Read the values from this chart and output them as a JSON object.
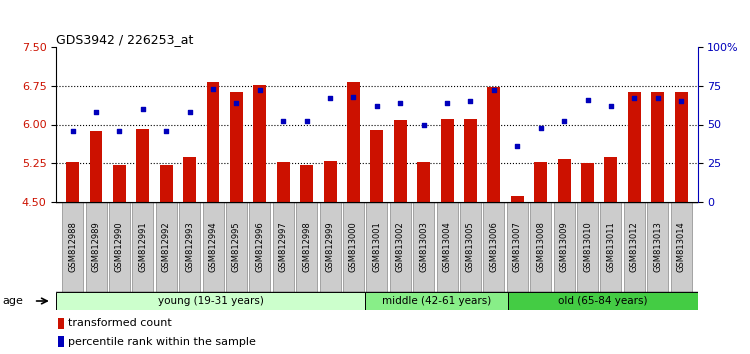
{
  "title": "GDS3942 / 226253_at",
  "samples": [
    "GSM812988",
    "GSM812989",
    "GSM812990",
    "GSM812991",
    "GSM812992",
    "GSM812993",
    "GSM812994",
    "GSM812995",
    "GSM812996",
    "GSM812997",
    "GSM812998",
    "GSM812999",
    "GSM813000",
    "GSM813001",
    "GSM813002",
    "GSM813003",
    "GSM813004",
    "GSM813005",
    "GSM813006",
    "GSM813007",
    "GSM813008",
    "GSM813009",
    "GSM813010",
    "GSM813011",
    "GSM813012",
    "GSM813013",
    "GSM813014"
  ],
  "bar_values": [
    5.28,
    5.87,
    5.22,
    5.91,
    5.22,
    5.38,
    6.82,
    6.62,
    6.76,
    5.27,
    5.22,
    5.3,
    6.82,
    5.9,
    6.08,
    5.27,
    6.1,
    6.1,
    6.73,
    4.62,
    5.27,
    5.33,
    5.25,
    5.37,
    6.62,
    6.62,
    6.62
  ],
  "percentile_values": [
    46,
    58,
    46,
    60,
    46,
    58,
    73,
    64,
    72,
    52,
    52,
    67,
    68,
    62,
    64,
    50,
    64,
    65,
    72,
    36,
    48,
    52,
    66,
    62,
    67,
    67,
    65
  ],
  "groups": [
    {
      "label": "young (19-31 years)",
      "start": 0,
      "end": 13,
      "color": "#ccffcc"
    },
    {
      "label": "middle (42-61 years)",
      "start": 13,
      "end": 19,
      "color": "#88ee88"
    },
    {
      "label": "old (65-84 years)",
      "start": 19,
      "end": 27,
      "color": "#44cc44"
    }
  ],
  "ylim_left": [
    4.5,
    7.5
  ],
  "ylim_right": [
    0,
    100
  ],
  "yticks_left": [
    4.5,
    5.25,
    6.0,
    6.75,
    7.5
  ],
  "yticks_right": [
    0,
    25,
    50,
    75,
    100
  ],
  "ytick_labels_right": [
    "0",
    "25",
    "50",
    "75",
    "100%"
  ],
  "bar_color": "#cc1100",
  "dot_color": "#0000bb",
  "bg_color": "#ffffff",
  "axis_color_left": "#cc1100",
  "axis_color_right": "#0000bb",
  "cell_bg_color": "#cccccc",
  "cell_border_color": "#888888"
}
